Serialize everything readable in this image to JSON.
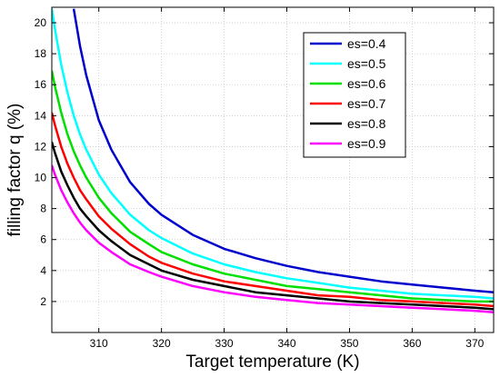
{
  "chart_data": {
    "type": "line",
    "title": "",
    "xlabel": "Target temperature (K)",
    "ylabel": "filling factor q (%)",
    "xlim": [
      302.5,
      373
    ],
    "ylim": [
      0,
      21
    ],
    "xticks": [
      310,
      320,
      330,
      340,
      350,
      360,
      370
    ],
    "yticks": [
      2,
      4,
      6,
      8,
      10,
      12,
      14,
      16,
      18,
      20
    ],
    "grid": true,
    "legend_position": "top-right",
    "x": [
      302.5,
      303,
      304,
      305,
      306,
      307,
      308,
      310,
      312,
      315,
      318,
      320,
      325,
      330,
      335,
      340,
      345,
      350,
      355,
      360,
      365,
      370,
      373
    ],
    "series": [
      {
        "name": "es=0.4",
        "color": "#0000cc",
        "values": [
          null,
          null,
          null,
          null,
          20.9,
          18.5,
          16.6,
          13.7,
          11.8,
          9.7,
          8.3,
          7.6,
          6.3,
          5.4,
          4.8,
          4.3,
          3.9,
          3.6,
          3.3,
          3.1,
          2.9,
          2.7,
          2.6
        ]
      },
      {
        "name": "es=0.5",
        "color": "#00ffff",
        "values": [
          20.9,
          19.6,
          17.3,
          15.5,
          14.0,
          12.8,
          11.8,
          10.2,
          9.0,
          7.6,
          6.6,
          6.1,
          5.1,
          4.4,
          3.9,
          3.5,
          3.2,
          2.9,
          2.7,
          2.5,
          2.4,
          2.3,
          2.2
        ]
      },
      {
        "name": "es=0.6",
        "color": "#00e000",
        "values": [
          16.9,
          15.9,
          14.2,
          12.8,
          11.7,
          10.8,
          10.0,
          8.7,
          7.7,
          6.5,
          5.7,
          5.2,
          4.4,
          3.8,
          3.4,
          3.0,
          2.8,
          2.6,
          2.4,
          2.2,
          2.1,
          2.0,
          2.0
        ]
      },
      {
        "name": "es=0.7",
        "color": "#ff0000",
        "values": [
          14.2,
          13.4,
          12.0,
          10.9,
          10.0,
          9.2,
          8.6,
          7.5,
          6.7,
          5.7,
          4.9,
          4.5,
          3.8,
          3.3,
          3.0,
          2.7,
          2.4,
          2.3,
          2.1,
          2.0,
          1.9,
          1.8,
          1.7
        ]
      },
      {
        "name": "es=0.8",
        "color": "#000000",
        "values": [
          12.3,
          11.6,
          10.4,
          9.5,
          8.7,
          8.0,
          7.5,
          6.6,
          5.9,
          5.0,
          4.4,
          4.0,
          3.4,
          3.0,
          2.6,
          2.4,
          2.2,
          2.0,
          1.9,
          1.8,
          1.7,
          1.6,
          1.5
        ]
      },
      {
        "name": "es=0.9",
        "color": "#ff00ff",
        "values": [
          10.8,
          10.2,
          9.2,
          8.4,
          7.7,
          7.1,
          6.6,
          5.8,
          5.2,
          4.4,
          3.9,
          3.6,
          3.0,
          2.6,
          2.3,
          2.1,
          1.9,
          1.8,
          1.7,
          1.6,
          1.5,
          1.4,
          1.3
        ]
      }
    ]
  }
}
